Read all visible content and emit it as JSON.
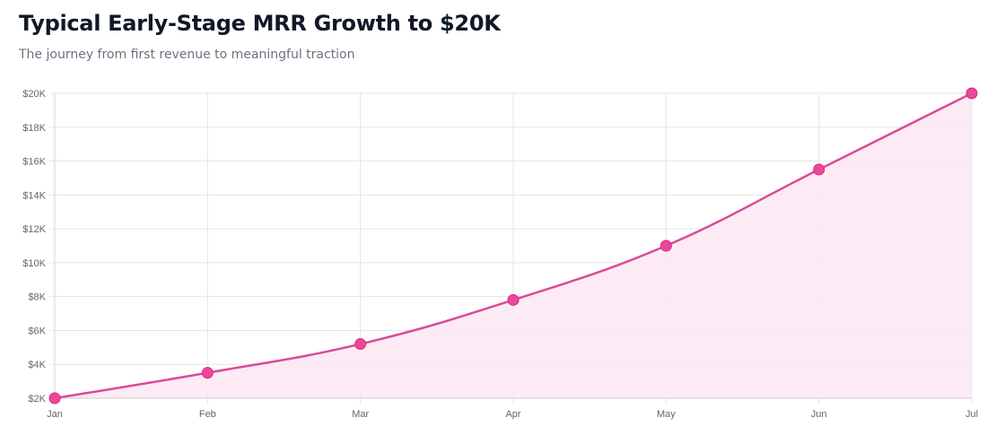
{
  "header": {
    "title": "Typical Early-Stage MRR Growth to $20K",
    "subtitle": "The journey from first revenue to meaningful traction"
  },
  "chart_data": {
    "type": "area",
    "title": "Typical Early-Stage MRR Growth to $20K",
    "subtitle": "The journey from first revenue to meaningful traction",
    "xlabel": "",
    "ylabel": "",
    "categories": [
      "Jan",
      "Feb",
      "Mar",
      "Apr",
      "May",
      "Jun",
      "Jul"
    ],
    "series": [
      {
        "name": "MRR",
        "values": [
          2000,
          3500,
          5200,
          7800,
          11000,
          15500,
          20000
        ]
      }
    ],
    "ylim": [
      2000,
      20000
    ],
    "yticks": [
      2000,
      4000,
      6000,
      8000,
      10000,
      12000,
      14000,
      16000,
      18000,
      20000
    ],
    "ytick_labels": [
      "$2K",
      "$4K",
      "$6K",
      "$8K",
      "$10K",
      "$12K",
      "$14K",
      "$16K",
      "$18K",
      "$20K"
    ],
    "grid": true,
    "legend": "none",
    "colors": {
      "line": "#db4a9a",
      "point": "#ec4899",
      "fill": "#fce7f3"
    }
  }
}
